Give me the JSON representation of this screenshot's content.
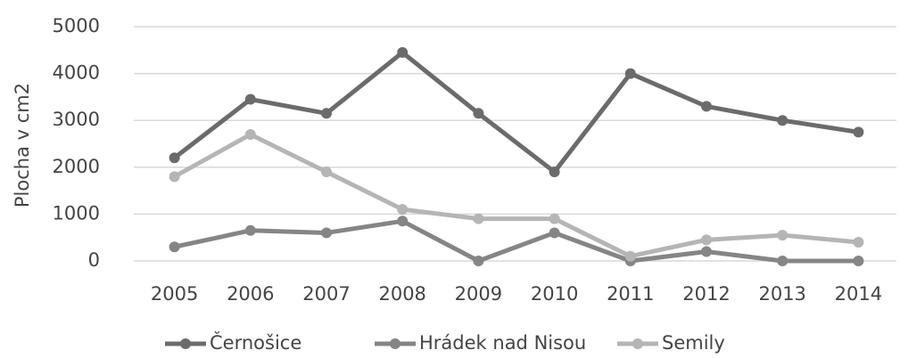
{
  "chart_data": {
    "type": "line",
    "y_label": "Plocha v cm2",
    "categories": [
      "2005",
      "2006",
      "2007",
      "2008",
      "2009",
      "2010",
      "2011",
      "2012",
      "2013",
      "2014"
    ],
    "series": [
      {
        "name": "Černošice",
        "color": "#6b6b6b",
        "values": [
          2200,
          3450,
          3150,
          4450,
          3150,
          1900,
          4000,
          3300,
          3000,
          2750
        ]
      },
      {
        "name": "Hrádek nad Nisou",
        "color": "#858585",
        "values": [
          300,
          650,
          600,
          850,
          0,
          600,
          0,
          200,
          0,
          0
        ]
      },
      {
        "name": "Semily",
        "color": "#b5b5b5",
        "values": [
          1800,
          2700,
          1900,
          1100,
          900,
          900,
          100,
          450,
          550,
          400
        ]
      }
    ],
    "ylim": [
      0,
      5000
    ],
    "yticks": [
      0,
      1000,
      2000,
      3000,
      4000,
      5000
    ],
    "grid": true
  }
}
